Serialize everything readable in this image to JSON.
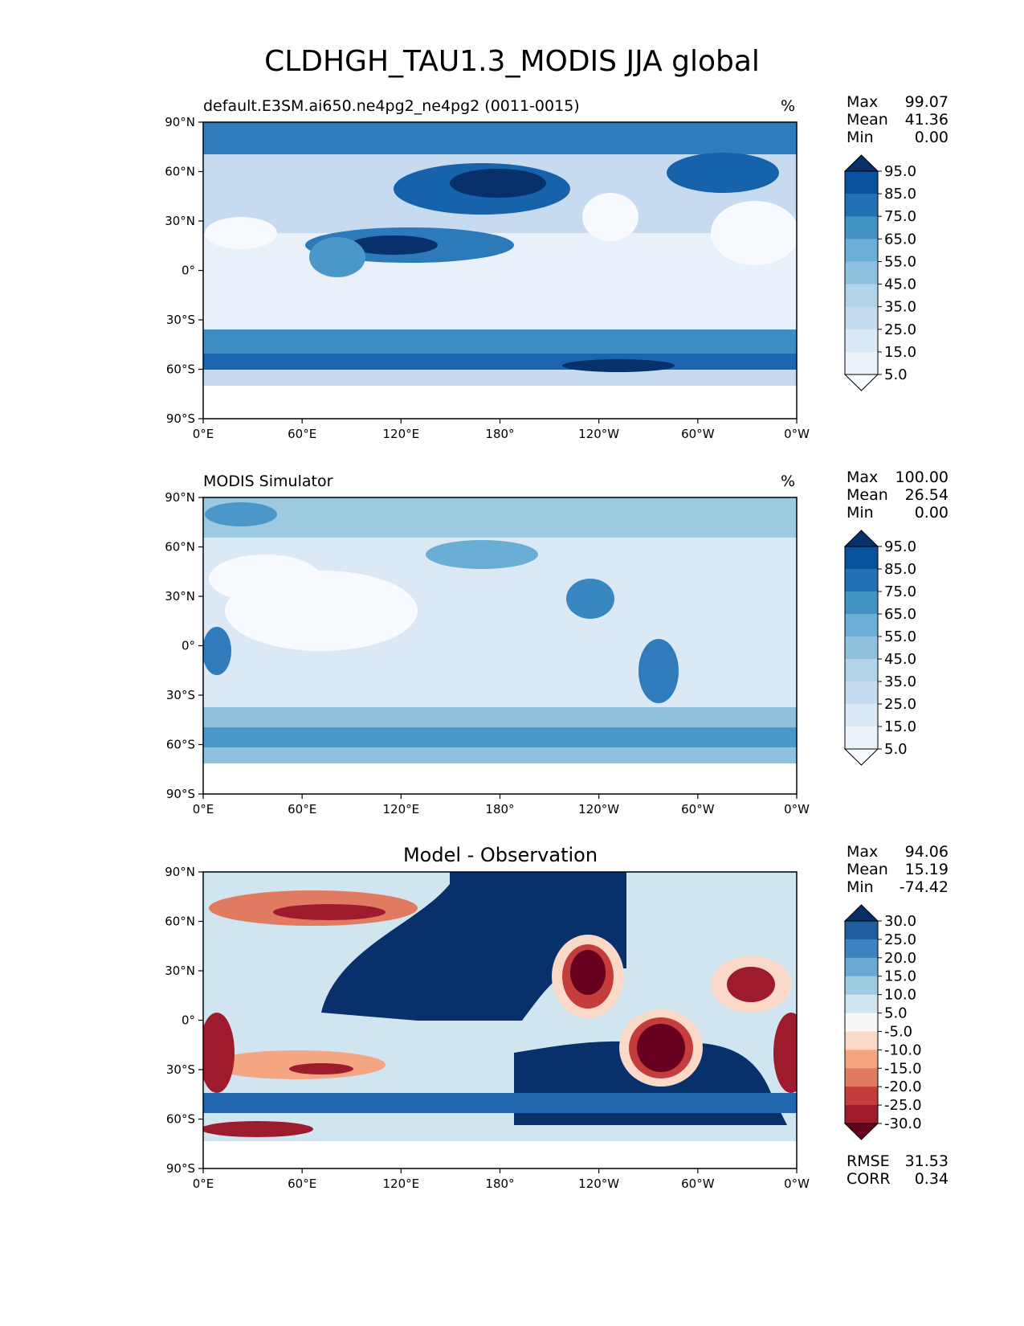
{
  "title": "CLDHGH_TAU1.3_MODIS JJA global",
  "axes": {
    "lat_ticks": [
      "90°N",
      "60°N",
      "30°N",
      "0°",
      "30°S",
      "60°S",
      "90°S"
    ],
    "lon_ticks": [
      "0°E",
      "60°E",
      "120°E",
      "180°",
      "120°W",
      "60°W",
      "0°W"
    ]
  },
  "panels": [
    {
      "id": "test",
      "title": "default.E3SM.ai650.ne4pg2_ne4pg2 (0011-0015)",
      "units": "%",
      "stats": {
        "max_label": "Max",
        "max": "99.07",
        "mean_label": "Mean",
        "mean": "41.36",
        "min_label": "Min",
        "min": "0.00"
      },
      "colorbar": {
        "labels": [
          "95.0",
          "85.0",
          "75.0",
          "65.0",
          "55.0",
          "45.0",
          "35.0",
          "25.0",
          "15.0",
          "5.0"
        ],
        "colors": [
          "#08306b",
          "#08519c",
          "#2171b5",
          "#4292c6",
          "#6baed6",
          "#8fc1de",
          "#b3d3e8",
          "#c6dbef",
          "#dbe9f6",
          "#eaf2fa",
          "#f7fbff"
        ]
      }
    },
    {
      "id": "ref",
      "title": "MODIS Simulator",
      "units": "%",
      "stats": {
        "max_label": "Max",
        "max": "100.00",
        "mean_label": "Mean",
        "mean": "26.54",
        "min_label": "Min",
        "min": "0.00"
      },
      "colorbar": {
        "labels": [
          "95.0",
          "85.0",
          "75.0",
          "65.0",
          "55.0",
          "45.0",
          "35.0",
          "25.0",
          "15.0",
          "5.0"
        ],
        "colors": [
          "#08306b",
          "#08519c",
          "#2171b5",
          "#4292c6",
          "#6baed6",
          "#8fc1de",
          "#b3d3e8",
          "#c6dbef",
          "#dbe9f6",
          "#eaf2fa",
          "#f7fbff"
        ]
      }
    },
    {
      "id": "diff",
      "title": "Model - Observation",
      "units": "",
      "stats": {
        "max_label": "Max",
        "max": "94.06",
        "mean_label": "Mean",
        "mean": "15.19",
        "min_label": "Min",
        "min": "-74.42"
      },
      "extra_stats": {
        "rmse_label": "RMSE",
        "rmse": "31.53",
        "corr_label": "CORR",
        "corr": "0.34"
      },
      "colorbar": {
        "labels": [
          "30.0",
          "25.0",
          "20.0",
          "15.0",
          "10.0",
          "5.0",
          "-5.0",
          "-10.0",
          "-15.0",
          "-20.0",
          "-25.0",
          "-30.0"
        ],
        "colors": [
          "#053061",
          "#1f5fa0",
          "#3a84bf",
          "#6aa9d2",
          "#9ecbe2",
          "#d1e5f0",
          "#f7f7f7",
          "#fbd9c8",
          "#f4a582",
          "#e07b62",
          "#c43c3c",
          "#9e1b2e",
          "#67001f"
        ]
      }
    }
  ]
}
